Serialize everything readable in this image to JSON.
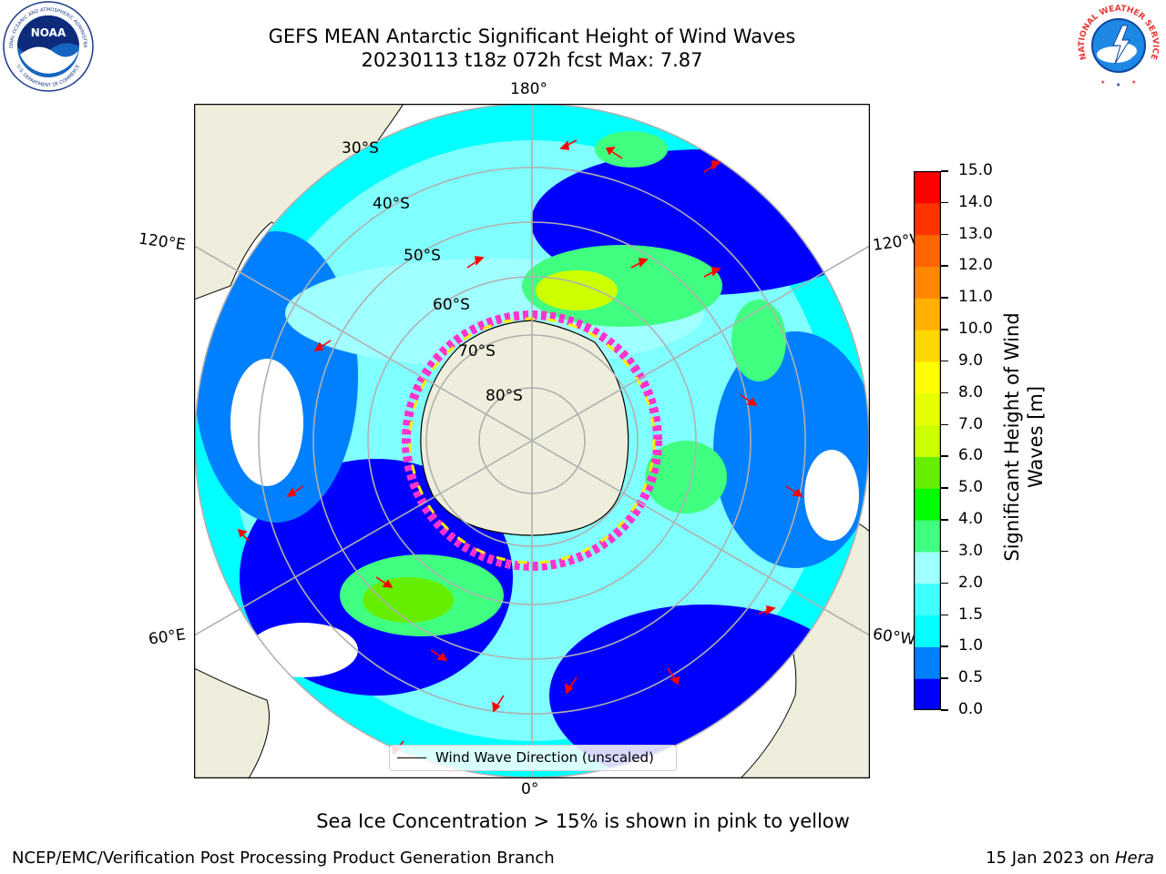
{
  "title": {
    "line1": "GEFS MEAN Antarctic Significant Height of Wind Waves",
    "line2": "20230113 t18z 072h fcst   Max: 7.87"
  },
  "map": {
    "lon_labels": {
      "top": "180°",
      "bottom": "0°",
      "upper_left": "120°E",
      "upper_right": "120°W",
      "lower_left": "60°E",
      "lower_right": "60°W"
    },
    "lat_labels": [
      "30°S",
      "40°S",
      "50°S",
      "60°S",
      "70°S",
      "80°S"
    ],
    "land_color": "#efeedc",
    "sea_ice_color": "#ff33cc"
  },
  "legend": {
    "label": "Wind Wave Direction (unscaled)"
  },
  "colorbar": {
    "label": "Significant Height of Wind Waves [m]",
    "ticks": [
      "0.0",
      "0.5",
      "1.0",
      "1.5",
      "2.0",
      "3.0",
      "4.0",
      "5.0",
      "6.0",
      "7.0",
      "8.0",
      "9.0",
      "10.0",
      "11.0",
      "12.0",
      "13.0",
      "14.0",
      "15.0"
    ],
    "colors": [
      "#0000ff",
      "#0080ff",
      "#00ffff",
      "#40ffff",
      "#a0ffff",
      "#40ff80",
      "#00ff00",
      "#66ee00",
      "#ccff00",
      "#e6ff00",
      "#ffff00",
      "#ffd700",
      "#ffb000",
      "#ff8800",
      "#ff6600",
      "#ff3300",
      "#ff0000"
    ]
  },
  "footer": {
    "note": "Sea Ice Concentration > 15% is shown in pink to yellow",
    "org": "NCEP/EMC/Verification Post Processing Product Generation Branch",
    "date": "15 Jan 2023 on ",
    "host": "Hera"
  },
  "logos": {
    "noaa_text": "NOAA",
    "noaa_ring_text": "NATIONAL OCEANIC AND ATMOSPHERIC ADMINISTRATION",
    "noaa_ring_bottom": "U.S. DEPARTMENT OF COMMERCE",
    "nws_ring_text": "NATIONAL WEATHER SERVICE"
  }
}
